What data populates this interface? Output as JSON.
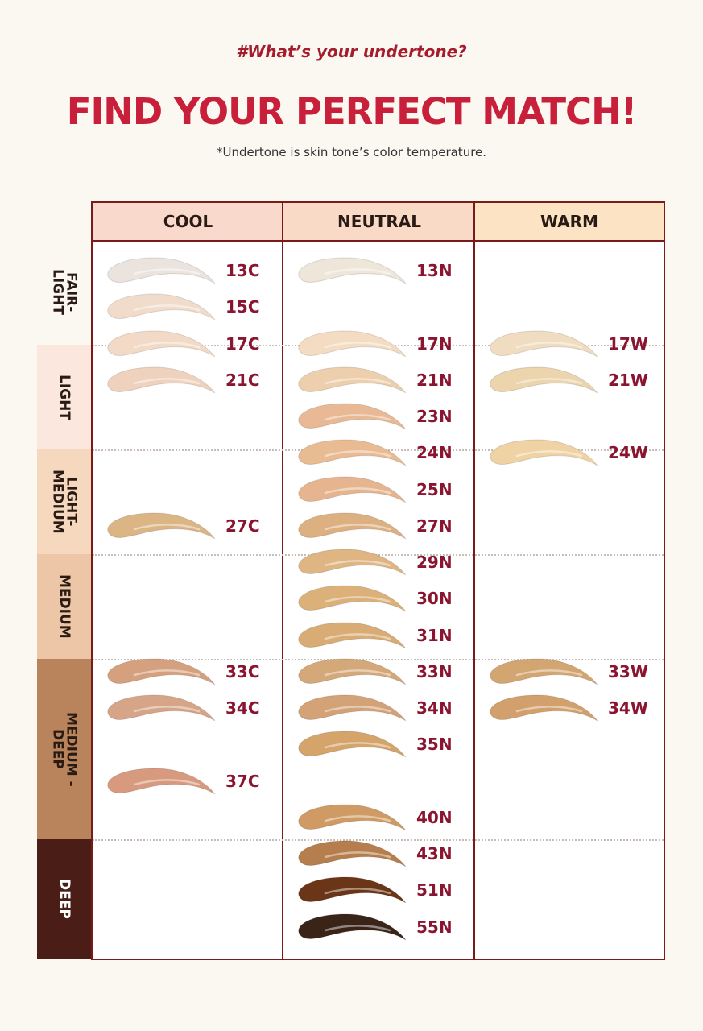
{
  "header": {
    "kicker": "#What’s your undertone?",
    "title": "FIND YOUR PERFECT MATCH!",
    "note": "*Undertone is skin tone’s color temperature."
  },
  "colors": {
    "title": "#c8203a",
    "border": "#7a1a1a",
    "shade_label": "#8a1530"
  },
  "columns": [
    {
      "label": "COOL",
      "bg": "#f8d9cb"
    },
    {
      "label": "NEUTRAL",
      "bg": "#f9dac7"
    },
    {
      "label": "WARM",
      "bg": "#fbe3c3"
    }
  ],
  "depth_groups": [
    {
      "label": "FAIR-\nLIGHT",
      "bg": "#fbf8f2",
      "dark": false
    },
    {
      "label": "LIGHT",
      "bg": "#fbe7de",
      "dark": false
    },
    {
      "label": "LIGHT-\nMEDIUM",
      "bg": "#f5d8bd",
      "dark": false
    },
    {
      "label": "MEDIUM",
      "bg": "#ecc6a6",
      "dark": false
    },
    {
      "label": "MEDIUM -\nDEEP",
      "bg": "#b9835c",
      "dark": false
    },
    {
      "label": "DEEP",
      "bg": "#4a1e17",
      "dark": true
    }
  ],
  "swatches": {
    "cool": [
      {
        "shade": "13C",
        "color": "#ebe3de"
      },
      {
        "shade": "15C",
        "color": "#f1dccb"
      },
      {
        "shade": "17C",
        "color": "#f2dac6"
      },
      {
        "shade": "21C",
        "color": "#efd2bd"
      },
      {
        "shade": "27C",
        "color": "#dcb585"
      },
      {
        "shade": "33C",
        "color": "#d4a07e"
      },
      {
        "shade": "34C",
        "color": "#d6a486"
      },
      {
        "shade": "37C",
        "color": "#d79a7e"
      }
    ],
    "neutral": [
      {
        "shade": "13N",
        "color": "#eee6d8"
      },
      {
        "shade": "17N",
        "color": "#f3dcc2"
      },
      {
        "shade": "21N",
        "color": "#edcfae"
      },
      {
        "shade": "23N",
        "color": "#e8b994"
      },
      {
        "shade": "24N",
        "color": "#e9bb93"
      },
      {
        "shade": "25N",
        "color": "#e6b58f"
      },
      {
        "shade": "27N",
        "color": "#ddb081"
      },
      {
        "shade": "29N",
        "color": "#dfb583"
      },
      {
        "shade": "30N",
        "color": "#dbb079"
      },
      {
        "shade": "31N",
        "color": "#d8ac74"
      },
      {
        "shade": "33N",
        "color": "#d4a878"
      },
      {
        "shade": "34N",
        "color": "#d3a277"
      },
      {
        "shade": "35N",
        "color": "#d4a46b"
      },
      {
        "shade": "40N",
        "color": "#cf9a63"
      },
      {
        "shade": "43N",
        "color": "#b57e4c"
      },
      {
        "shade": "51N",
        "color": "#6b3518"
      },
      {
        "shade": "55N",
        "color": "#3a2418"
      }
    ],
    "warm": [
      {
        "shade": "17W",
        "color": "#f0dcc0"
      },
      {
        "shade": "21W",
        "color": "#ecd4ac"
      },
      {
        "shade": "24W",
        "color": "#efd3a4"
      },
      {
        "shade": "33W",
        "color": "#d3a671"
      },
      {
        "shade": "34W",
        "color": "#d2a06c"
      }
    ]
  }
}
